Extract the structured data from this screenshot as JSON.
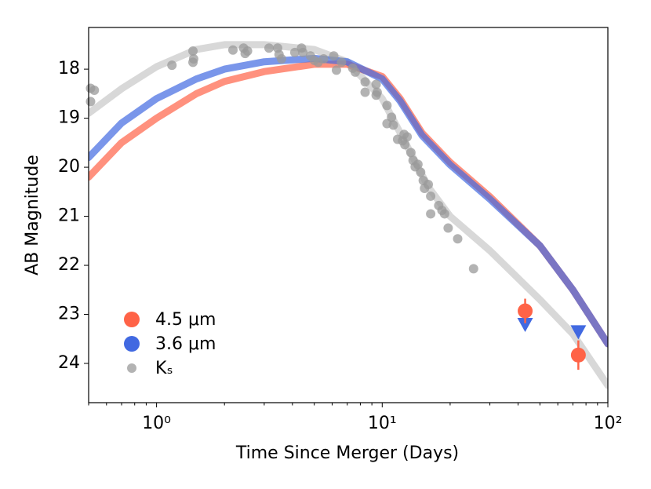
{
  "chart_data": {
    "type": "scatter",
    "xlabel": "Time Since Merger (Days)",
    "ylabel": "AB Magnitude",
    "xscale": "log",
    "xlim": [
      0.5,
      100
    ],
    "xticks": [
      {
        "value": 1,
        "label": "10⁰"
      },
      {
        "value": 10,
        "label": "10¹"
      },
      {
        "value": 100,
        "label": "10²"
      }
    ],
    "ylim": [
      24.8,
      17.15
    ],
    "yticks": [
      18,
      19,
      20,
      21,
      22,
      23,
      24
    ],
    "legend": "lower left",
    "model_curves": [
      {
        "color": "#c8c8c8",
        "x": [
          0.5,
          0.7,
          1,
          1.5,
          2,
          3,
          5,
          7,
          10,
          13,
          16,
          20,
          30,
          50,
          70,
          100
        ],
        "values": [
          18.9,
          18.4,
          17.95,
          17.6,
          17.5,
          17.5,
          17.6,
          17.85,
          18.6,
          19.6,
          20.4,
          21.0,
          21.7,
          22.7,
          23.4,
          24.45
        ]
      },
      {
        "color": "#ff6347",
        "x": [
          0.5,
          0.7,
          1,
          1.5,
          2,
          3,
          5,
          7,
          10,
          12,
          15,
          20,
          30,
          50,
          70,
          100
        ],
        "values": [
          20.2,
          19.5,
          19.0,
          18.5,
          18.25,
          18.05,
          17.9,
          17.9,
          18.15,
          18.6,
          19.3,
          19.9,
          20.6,
          21.6,
          22.5,
          23.6
        ]
      },
      {
        "color": "#4169e1",
        "x": [
          0.5,
          0.7,
          1,
          1.5,
          2,
          3,
          5,
          7,
          10,
          12,
          15,
          20,
          30,
          50,
          70,
          100
        ],
        "values": [
          19.8,
          19.1,
          18.6,
          18.2,
          18.0,
          17.85,
          17.78,
          17.85,
          18.2,
          18.65,
          19.35,
          19.95,
          20.65,
          21.6,
          22.5,
          23.6
        ]
      }
    ],
    "series": [
      {
        "name": "4.5 μm",
        "color": "#ff6347",
        "marker": "circle",
        "x": [
          43,
          74
        ],
        "values": [
          22.93,
          23.83
        ],
        "errors": [
          0.25,
          0.3
        ]
      },
      {
        "name": "3.6 μm",
        "color": "#4169e1",
        "marker": "triangle-down",
        "x": [
          43,
          74
        ],
        "values": [
          23.2,
          23.35
        ]
      },
      {
        "name": "Kₛ",
        "color": "#999999",
        "marker": "small-circle",
        "x": [
          0.51,
          0.53,
          0.51,
          1.17,
          1.45,
          1.45,
          1.46,
          2.18,
          2.43,
          2.47,
          2.53,
          3.15,
          3.44,
          3.49,
          3.58,
          4.1,
          4.39,
          4.45,
          4.81,
          5.0,
          5.2,
          5.5,
          6.1,
          6.27,
          6.6,
          7.4,
          7.6,
          8.4,
          8.4,
          9.4,
          9.5,
          9.4,
          10.5,
          10.5,
          11.0,
          11.2,
          11.7,
          12.3,
          12.5,
          12.6,
          12.9,
          13.4,
          13.7,
          14.0,
          14.4,
          14.8,
          15.2,
          15.4,
          16.0,
          16.4,
          17.8,
          18.4,
          16.4,
          18.9,
          19.6,
          21.6,
          25.4
        ],
        "values": [
          18.39,
          18.43,
          18.66,
          17.92,
          17.63,
          17.86,
          17.79,
          17.61,
          17.57,
          17.68,
          17.63,
          17.57,
          17.57,
          17.7,
          17.79,
          17.66,
          17.57,
          17.66,
          17.73,
          17.82,
          17.86,
          17.79,
          17.73,
          18.02,
          17.86,
          17.98,
          18.06,
          18.26,
          18.47,
          18.31,
          18.47,
          18.53,
          18.74,
          19.11,
          18.98,
          19.14,
          19.43,
          19.46,
          19.33,
          19.54,
          19.38,
          19.7,
          19.86,
          19.99,
          19.94,
          20.1,
          20.27,
          20.43,
          20.35,
          20.59,
          20.78,
          20.88,
          20.95,
          20.95,
          21.24,
          21.46,
          22.07
        ]
      }
    ]
  }
}
